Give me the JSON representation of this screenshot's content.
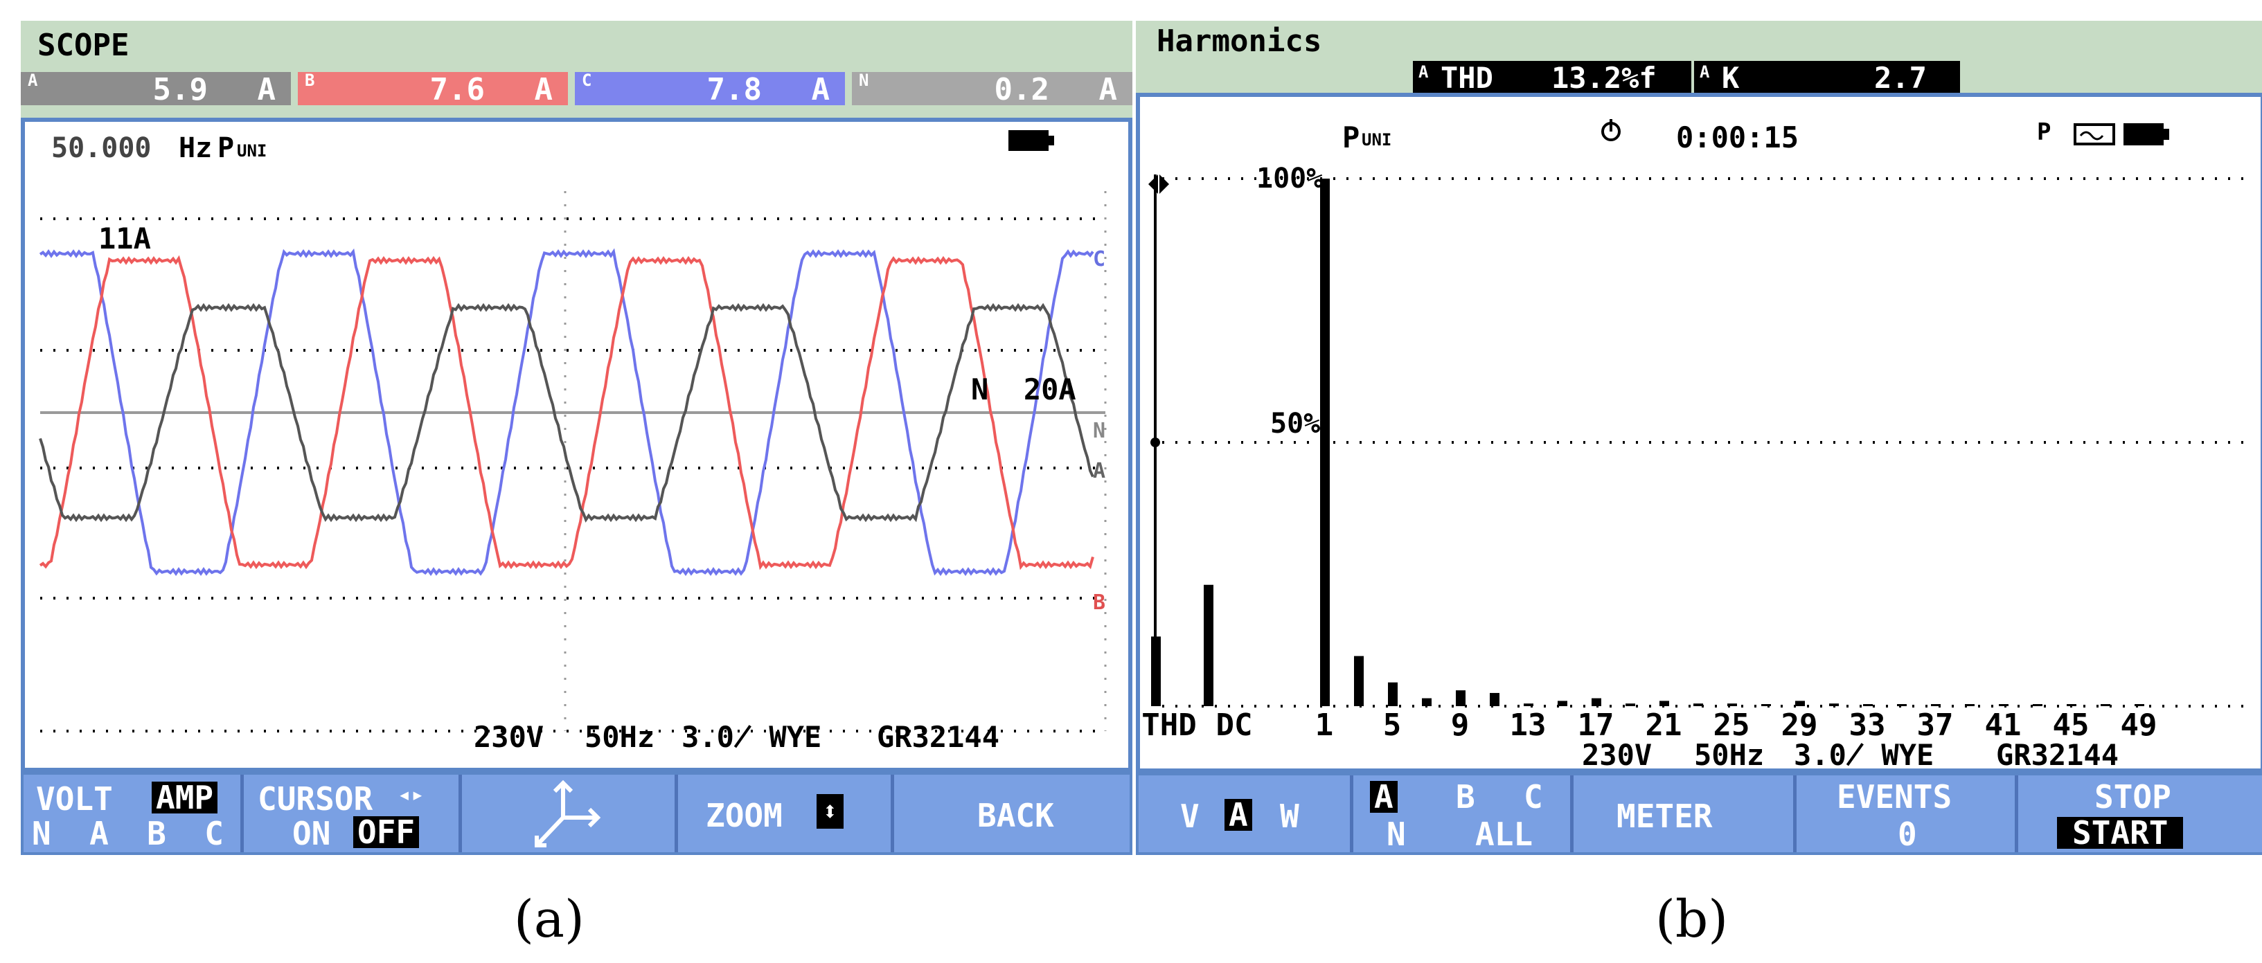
{
  "scope": {
    "title": "SCOPE",
    "readouts": [
      {
        "phase": "A",
        "value": "5.9",
        "unit": "A",
        "color": "#8d8d8d"
      },
      {
        "phase": "B",
        "value": "7.6",
        "unit": "A",
        "color": "#f07a7a"
      },
      {
        "phase": "C",
        "value": "7.8",
        "unit": "A",
        "color": "#7d84ee"
      },
      {
        "phase": "N",
        "value": "0.2",
        "unit": "A",
        "color": "#a7a7a7"
      }
    ],
    "frequency": "50.000",
    "freq_unit": "Hz",
    "mode": "P",
    "mode_suffix": "UNI",
    "scale_top": "11A",
    "neutral_scale": "N  20A",
    "trace_labels": {
      "c": "C",
      "n": "N",
      "a": "A",
      "b": "B"
    },
    "status": {
      "voltage": "230V",
      "freq": "50Hz",
      "config": "3.0̸ WYE",
      "standard": "GR32144"
    },
    "softkeys": {
      "k1_a": "VOLT",
      "k1_b": "AMP",
      "k1_c": "N  A  B  C",
      "k2_a": "CURSOR",
      "k2_b": "ON",
      "k2_c": "OFF",
      "k4": "ZOOM",
      "k5": "BACK"
    },
    "caption": "(a)"
  },
  "harmonics": {
    "title": "Harmonics",
    "thd_phase": "A",
    "thd_label": "THD",
    "thd_value": "13.2%f",
    "k_phase": "A",
    "k_label": "K",
    "k_value": "2.7",
    "mode": "P",
    "mode_suffix": "UNI",
    "timer": "0:00:15",
    "y_top": "100%",
    "y_mid": "50%",
    "status": {
      "voltage": "230V",
      "freq": "50Hz",
      "config": "3.0̸ WYE",
      "standard": "GR32144"
    },
    "softkeys": {
      "k1_v": "V",
      "k1_a": "A",
      "k1_w": "W",
      "k2_a": "A",
      "k2_b": "B",
      "k2_c": "C",
      "k2_n": "N",
      "k2_all": "ALL",
      "k3": "METER",
      "k4_a": "EVENTS",
      "k4_b": "0",
      "k5_a": "STOP",
      "k5_b": "START"
    },
    "caption": "(b)"
  },
  "chart_data": {
    "type": "bar",
    "categories": [
      "THD",
      "DC",
      "1",
      "3",
      "5",
      "7",
      "9",
      "11",
      "13",
      "15",
      "17",
      "19",
      "21",
      "23",
      "25",
      "27",
      "29",
      "31",
      "33",
      "35",
      "37",
      "39",
      "41",
      "43",
      "45",
      "47",
      "49"
    ],
    "x_tick_labels": [
      "THD",
      "DC",
      "1",
      "5",
      "9",
      "13",
      "17",
      "21",
      "25",
      "29",
      "33",
      "37",
      "41",
      "45",
      "49"
    ],
    "values": [
      13.2,
      23,
      100,
      9.5,
      4.5,
      1.5,
      3,
      2.5,
      0.5,
      1,
      1.5,
      0.5,
      1,
      0.5,
      0.5,
      0.3,
      1,
      0.5,
      0.3,
      0.3,
      0.3,
      0.2,
      0.2,
      0.3,
      0.2,
      0.2,
      0.3
    ],
    "ylim": [
      0,
      100
    ],
    "y_tick_labels": [
      "100%",
      "50%"
    ],
    "grid": true
  }
}
